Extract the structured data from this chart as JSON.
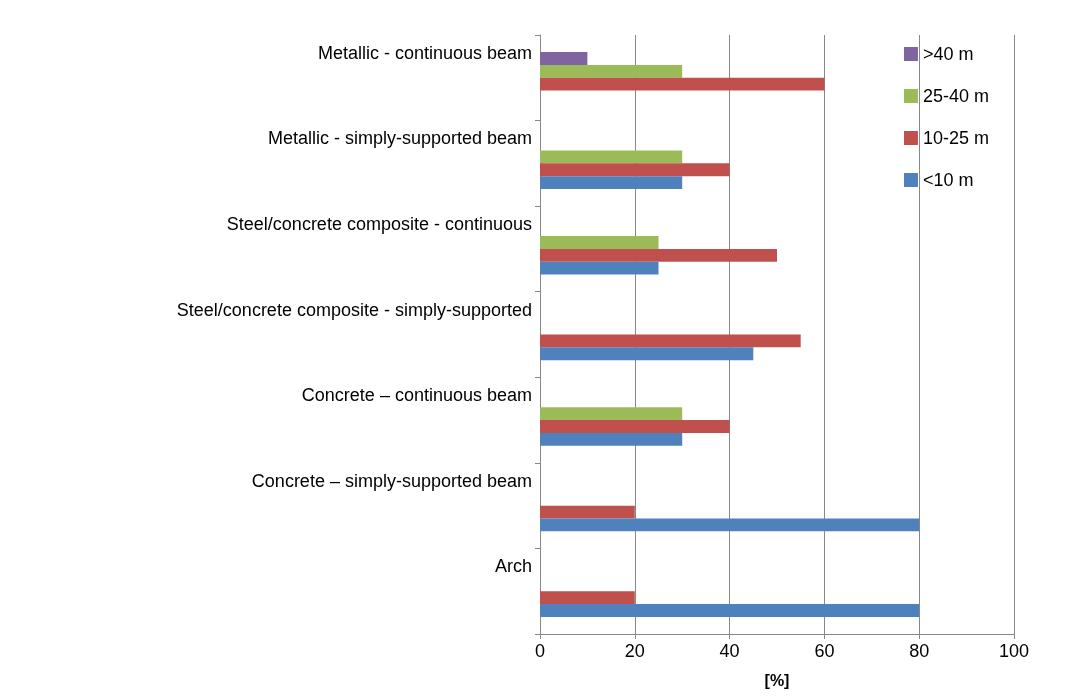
{
  "chart_data": {
    "type": "bar",
    "orientation": "horizontal",
    "xlabel": "[%]",
    "categories": [
      "Metallic - continuous beam",
      "Metallic - simply-supported beam",
      "Steel/concrete composite - continuous",
      "Steel/concrete composite - simply-supported",
      "Concrete – continuous beam",
      "Concrete – simply-supported beam",
      "Arch"
    ],
    "series": [
      {
        "name": ">40 m",
        "color": "#8064a2",
        "values": [
          10,
          null,
          null,
          null,
          null,
          null,
          null
        ]
      },
      {
        "name": "25-40 m",
        "color": "#9bbb59",
        "values": [
          30,
          30,
          25,
          null,
          30,
          null,
          null
        ]
      },
      {
        "name": "10-25 m",
        "color": "#c0504d",
        "values": [
          60,
          40,
          50,
          55,
          40,
          20,
          20
        ]
      },
      {
        "name": "<10 m",
        "color": "#4f81bd",
        "values": [
          null,
          30,
          25,
          45,
          30,
          80,
          80
        ]
      }
    ],
    "xlim": [
      0,
      100
    ],
    "xticks": [
      0,
      20,
      40,
      60,
      80,
      100
    ],
    "grid": "x",
    "legend": "top right"
  }
}
